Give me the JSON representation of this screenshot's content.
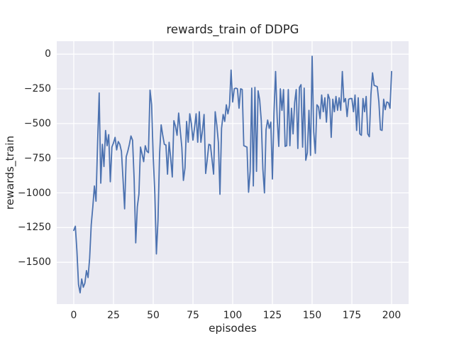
{
  "figure": {
    "background": "#ffffff",
    "axes_background": "#EAEAF2",
    "grid_color": "#FFFFFF",
    "text_color": "#262626"
  },
  "chart_data": {
    "type": "line",
    "title": "rewards_train of DDPG",
    "xlabel": "episodes",
    "ylabel": "rewards_train",
    "grid": true,
    "legend": "none",
    "xlim": [
      -10.7,
      210.7
    ],
    "ylim": [
      -1801,
      93
    ],
    "xticks": [
      0,
      25,
      50,
      75,
      100,
      125,
      150,
      175,
      200
    ],
    "xtick_labels": [
      "0",
      "25",
      "50",
      "75",
      "100",
      "125",
      "150",
      "175",
      "200"
    ],
    "yticks": [
      0,
      -250,
      -500,
      -750,
      -1000,
      -1250,
      -1500
    ],
    "ytick_labels": [
      "0",
      "−250",
      "−500",
      "−750",
      "−1000",
      "−1250",
      "−1500"
    ],
    "x_start": 0,
    "x_step": 1,
    "series": [
      {
        "name": "rewards_train",
        "color": "#4C72B0",
        "line_width": 1.8,
        "values": [
          -1270,
          -1240,
          -1420,
          -1660,
          -1720,
          -1620,
          -1680,
          -1650,
          -1560,
          -1610,
          -1470,
          -1230,
          -1100,
          -950,
          -1060,
          -640,
          -280,
          -930,
          -650,
          -810,
          -550,
          -660,
          -580,
          -920,
          -670,
          -640,
          -600,
          -690,
          -630,
          -650,
          -700,
          -900,
          -1115,
          -740,
          -700,
          -650,
          -590,
          -620,
          -900,
          -1360,
          -1100,
          -1010,
          -670,
          -720,
          -775,
          -660,
          -700,
          -710,
          -260,
          -365,
          -740,
          -1000,
          -1440,
          -1200,
          -720,
          -510,
          -585,
          -650,
          -655,
          -865,
          -635,
          -750,
          -885,
          -480,
          -520,
          -585,
          -425,
          -550,
          -670,
          -910,
          -820,
          -485,
          -635,
          -430,
          -500,
          -620,
          -530,
          -430,
          -635,
          -415,
          -635,
          -550,
          -435,
          -860,
          -760,
          -650,
          -655,
          -760,
          -865,
          -415,
          -510,
          -635,
          -1010,
          -535,
          -435,
          -485,
          -365,
          -430,
          -370,
          -115,
          -345,
          -250,
          -245,
          -250,
          -390,
          -250,
          -255,
          -660,
          -665,
          -670,
          -995,
          -845,
          -245,
          -950,
          -240,
          -845,
          -265,
          -330,
          -480,
          -830,
          -1000,
          -545,
          -475,
          -535,
          -490,
          -900,
          -420,
          -125,
          -460,
          -665,
          -250,
          -405,
          -255,
          -665,
          -660,
          -255,
          -660,
          -390,
          -575,
          -350,
          -255,
          -680,
          -240,
          -220,
          -670,
          -245,
          -765,
          -710,
          -405,
          -730,
          -15,
          -560,
          -715,
          -365,
          -380,
          -465,
          -295,
          -415,
          -315,
          -490,
          -290,
          -325,
          -600,
          -325,
          -415,
          -305,
          -405,
          -315,
          -405,
          -125,
          -345,
          -320,
          -450,
          -325,
          -320,
          -320,
          -415,
          -295,
          -550,
          -315,
          -575,
          -585,
          -320,
          -415,
          -305,
          -575,
          -595,
          -290,
          -135,
          -225,
          -230,
          -235,
          -345,
          -545,
          -550,
          -325,
          -400,
          -345,
          -350,
          -390,
          -125
        ]
      }
    ]
  }
}
